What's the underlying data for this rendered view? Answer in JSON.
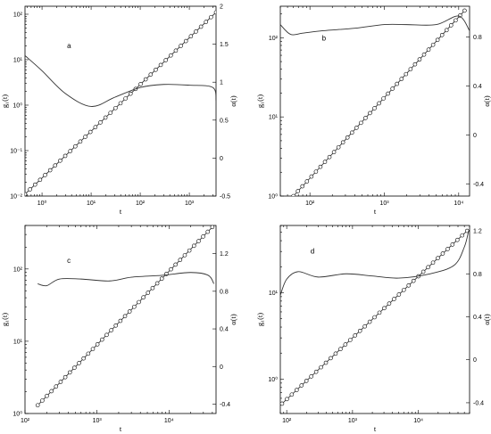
{
  "chart_data": [
    {
      "type": "line",
      "panel_label": "a",
      "xlabel": "t",
      "ylabel_left": "g₁(t)",
      "ylabel_right": "α(t)",
      "x_scale": "log",
      "y_left_scale": "log",
      "xlim": [
        0.45,
        3500
      ],
      "ylim_left": [
        0.01,
        150
      ],
      "ylim_right": [
        -0.5,
        2
      ],
      "x_ticks": [
        {
          "v": 1,
          "label": "10⁰"
        },
        {
          "v": 10,
          "label": "10¹"
        },
        {
          "v": 100,
          "label": "10²"
        },
        {
          "v": 1000,
          "label": "10³"
        }
      ],
      "y_left_ticks": [
        {
          "v": 0.01,
          "label": "10⁻²"
        },
        {
          "v": 0.1,
          "label": "10⁻¹"
        },
        {
          "v": 1,
          "label": "10⁰"
        },
        {
          "v": 10,
          "label": "10¹"
        },
        {
          "v": 100,
          "label": "10²"
        }
      ],
      "y_right_ticks": [
        {
          "v": -0.5,
          "label": "-0.5"
        },
        {
          "v": 0,
          "label": "0"
        },
        {
          "v": 0.5,
          "label": "0.5"
        },
        {
          "v": 1,
          "label": "1"
        },
        {
          "v": 1.5,
          "label": "1.5"
        },
        {
          "v": 2,
          "label": "2"
        }
      ],
      "g1_series": {
        "x_start": 0.45,
        "x_end": 3500,
        "y_start": 0.011,
        "y_end": 110
      },
      "alpha_series": {
        "x": [
          0.45,
          1,
          3,
          10,
          30,
          100,
          300,
          1000,
          3000,
          3500
        ],
        "y": [
          1.35,
          1.15,
          0.85,
          0.68,
          0.8,
          0.93,
          0.97,
          0.96,
          0.93,
          0.75
        ]
      }
    },
    {
      "type": "line",
      "panel_label": "b",
      "xlabel": "t",
      "ylabel_left": "g₁(t)",
      "ylabel_right": "α(t)",
      "x_scale": "log",
      "y_left_scale": "log",
      "xlim": [
        40,
        14000
      ],
      "ylim_left": [
        1,
        250
      ],
      "ylim_right": [
        -0.5,
        1.05
      ],
      "x_ticks": [
        {
          "v": 100,
          "label": "10²"
        },
        {
          "v": 1000,
          "label": "10³"
        },
        {
          "v": 10000,
          "label": "10⁴"
        }
      ],
      "y_left_ticks": [
        {
          "v": 1,
          "label": "10⁰"
        },
        {
          "v": 10,
          "label": "10¹"
        },
        {
          "v": 100,
          "label": "10²"
        }
      ],
      "y_right_ticks": [
        {
          "v": -0.4,
          "label": "-0.4"
        },
        {
          "v": 0,
          "label": "0"
        },
        {
          "v": 0.4,
          "label": "0.4"
        },
        {
          "v": 0.8,
          "label": "0.8"
        }
      ],
      "g1_series": {
        "x_start": 60,
        "x_end": 12000,
        "y_start": 1.0,
        "y_end": 220
      },
      "alpha_series": {
        "x": [
          40,
          55,
          80,
          150,
          400,
          1000,
          2000,
          5000,
          10000,
          14000
        ],
        "y": [
          0.9,
          0.82,
          0.83,
          0.85,
          0.87,
          0.9,
          0.9,
          0.9,
          0.97,
          0.85
        ]
      }
    },
    {
      "type": "line",
      "panel_label": "c",
      "xlabel": "t",
      "ylabel_left": "g₁(t)",
      "ylabel_right": "α(t)",
      "x_scale": "log",
      "y_left_scale": "log",
      "xlim": [
        100,
        45000
      ],
      "ylim_left": [
        1,
        400
      ],
      "ylim_right": [
        -0.5,
        1.5
      ],
      "x_ticks": [
        {
          "v": 100,
          "label": "10²"
        },
        {
          "v": 1000,
          "label": "10³"
        },
        {
          "v": 10000,
          "label": "10⁴"
        }
      ],
      "y_left_ticks": [
        {
          "v": 1,
          "label": "10⁰"
        },
        {
          "v": 10,
          "label": "10¹"
        },
        {
          "v": 100,
          "label": "10²"
        }
      ],
      "y_right_ticks": [
        {
          "v": -0.4,
          "label": "-0.4"
        },
        {
          "v": 0,
          "label": "0"
        },
        {
          "v": 0.4,
          "label": "0.4"
        },
        {
          "v": 0.8,
          "label": "0.8"
        },
        {
          "v": 1.2,
          "label": "1.2"
        }
      ],
      "g1_series": {
        "x_start": 150,
        "x_end": 40000,
        "y_start": 1.3,
        "y_end": 380
      },
      "alpha_series": {
        "x": [
          150,
          200,
          300,
          600,
          1500,
          3000,
          8000,
          20000,
          35000,
          42000
        ],
        "y": [
          0.88,
          0.86,
          0.93,
          0.93,
          0.91,
          0.95,
          0.97,
          1.0,
          0.97,
          0.88
        ]
      }
    },
    {
      "type": "line",
      "panel_label": "d",
      "xlabel": "t",
      "ylabel_left": "g₁(t)",
      "ylabel_right": "α(t)",
      "x_scale": "log",
      "y_left_scale": "log",
      "xlim": [
        80,
        60000
      ],
      "ylim_left": [
        0.4,
        60
      ],
      "ylim_right": [
        -0.5,
        1.25
      ],
      "x_ticks": [
        {
          "v": 100,
          "label": "10²"
        },
        {
          "v": 1000,
          "label": "10³"
        },
        {
          "v": 10000,
          "label": "10⁴"
        }
      ],
      "y_left_ticks": [
        {
          "v": 1,
          "label": "10⁰"
        },
        {
          "v": 10,
          "label": "10¹"
        }
      ],
      "y_right_ticks": [
        {
          "v": -0.4,
          "label": "-0.4"
        },
        {
          "v": 0,
          "label": "0"
        },
        {
          "v": 0.4,
          "label": "0.4"
        },
        {
          "v": 0.8,
          "label": "0.8"
        },
        {
          "v": 1.2,
          "label": "1.2"
        }
      ],
      "g1_series": {
        "x_start": 85,
        "x_end": 55000,
        "y_start": 0.52,
        "y_end": 52
      },
      "alpha_series": {
        "x": [
          80,
          100,
          150,
          300,
          800,
          2000,
          5000,
          15000,
          35000,
          50000,
          58000
        ],
        "y": [
          0.6,
          0.75,
          0.82,
          0.77,
          0.8,
          0.78,
          0.76,
          0.8,
          0.88,
          1.05,
          1.2
        ]
      }
    }
  ]
}
